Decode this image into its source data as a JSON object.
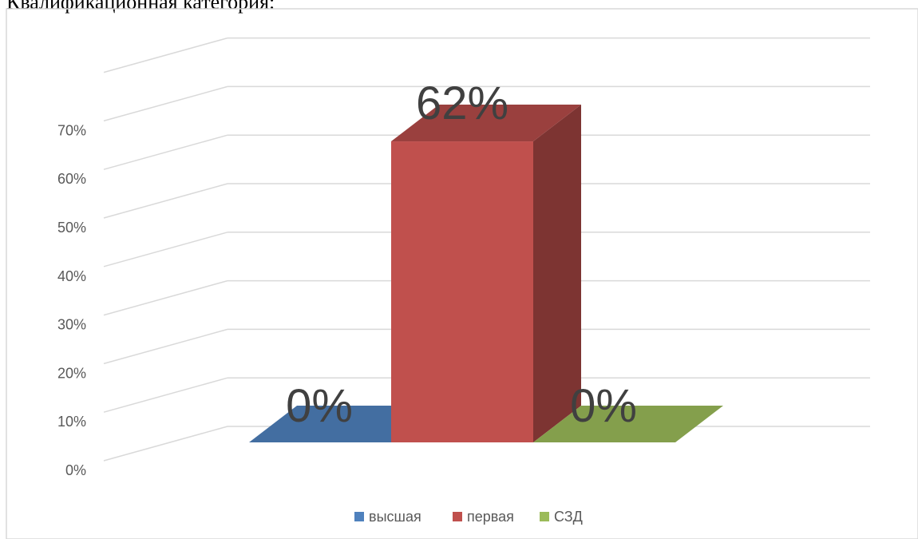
{
  "caption": "Квалификационная категория:",
  "chart_data": {
    "type": "bar",
    "subtype": "3d-clustered-column",
    "categories": [
      "высшая",
      "первая",
      "СЗД"
    ],
    "values": [
      0,
      62,
      0
    ],
    "value_unit": "%",
    "data_labels": [
      "0%",
      "62%",
      "0%"
    ],
    "colors": [
      "#4F81BD",
      "#C0504D",
      "#9BBB59"
    ],
    "y_ticks": [
      "0%",
      "10%",
      "20%",
      "30%",
      "40%",
      "50%",
      "60%",
      "70%"
    ],
    "ylim": [
      0,
      80
    ],
    "grid": true,
    "legend": {
      "position": "bottom",
      "entries": [
        "высшая",
        "первая",
        "СЗД"
      ]
    }
  }
}
